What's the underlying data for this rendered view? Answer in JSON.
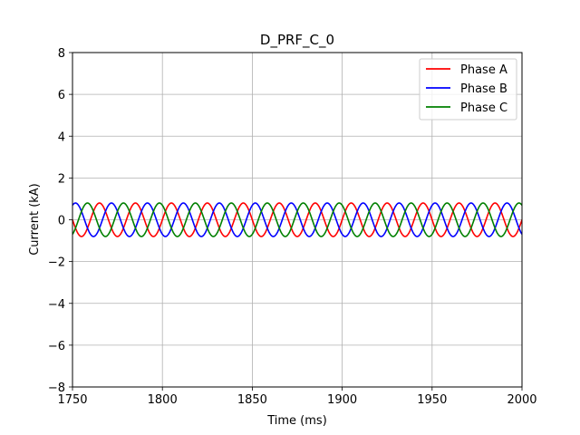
{
  "chart_data": {
    "type": "line",
    "title": "D_PRF_C_0",
    "xlabel": "Time (ms)",
    "ylabel": "Current (kA)",
    "xlim": [
      1750,
      2000
    ],
    "ylim": [
      -8,
      8
    ],
    "xticks": [
      1750,
      1800,
      1850,
      1900,
      1950,
      2000
    ],
    "yticks": [
      -8,
      -6,
      -4,
      -2,
      0,
      2,
      4,
      6,
      8
    ],
    "grid": true,
    "legend_position": "top-right",
    "waveform": {
      "shape": "sinusoid",
      "frequency_hz": 50,
      "amplitude_ka": 0.8
    },
    "series": [
      {
        "name": "Phase A",
        "color": "#ff0000",
        "phase_deg": 0
      },
      {
        "name": "Phase B",
        "color": "#0000ff",
        "phase_deg": -120
      },
      {
        "name": "Phase C",
        "color": "#008000",
        "phase_deg": 120
      }
    ]
  }
}
